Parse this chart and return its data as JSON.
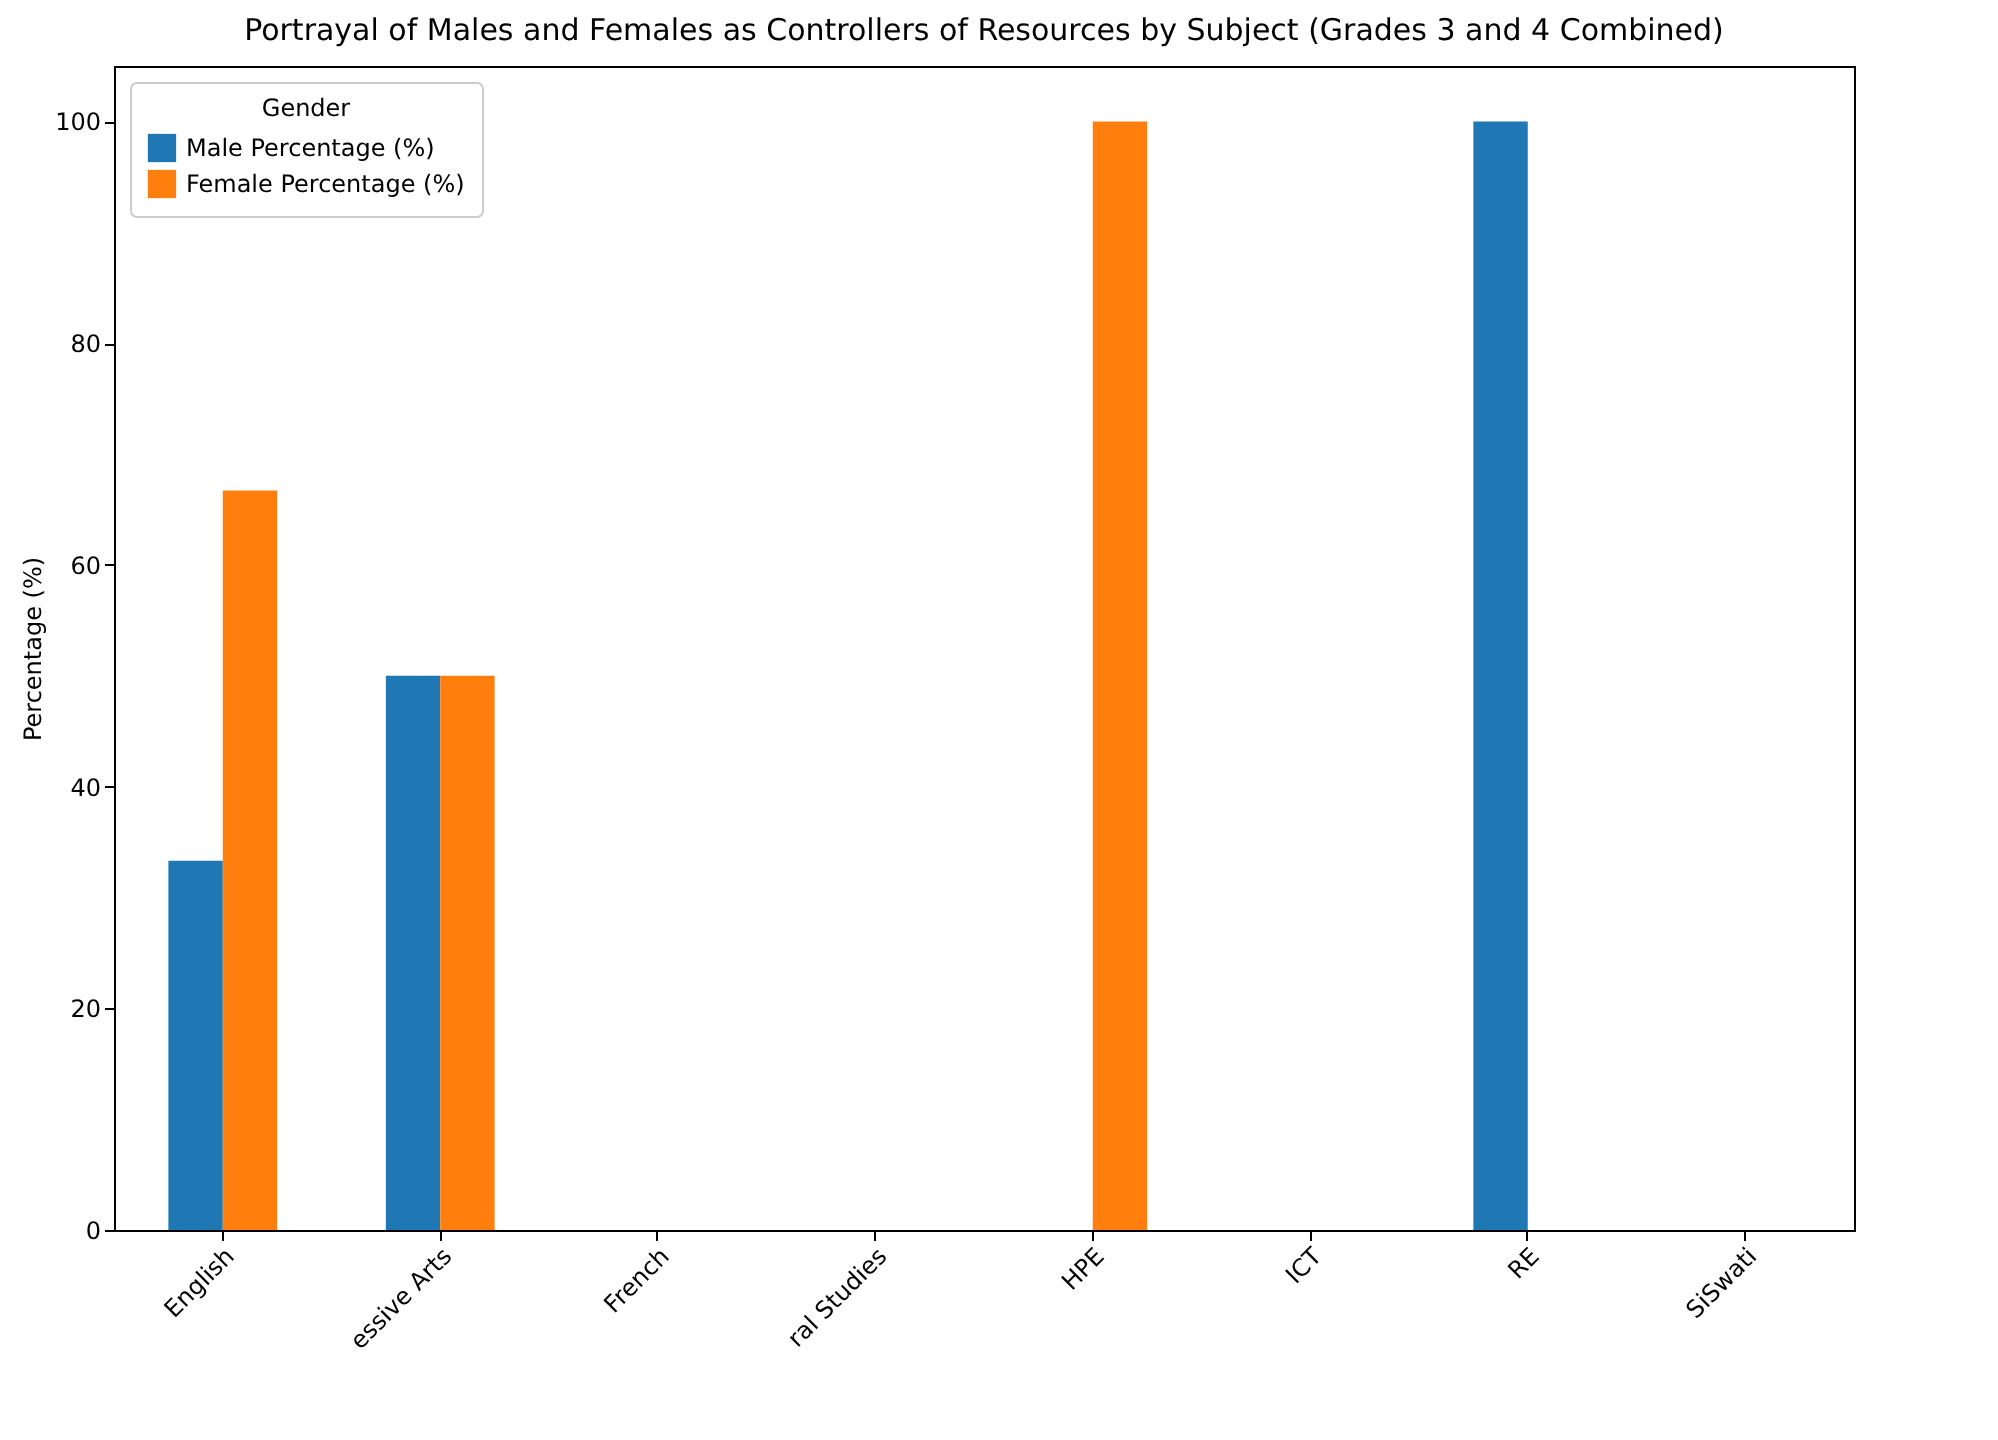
{
  "chart_data": {
    "type": "bar",
    "title": "Portrayal of Males and Females as Controllers of Resources by Subject (Grades 3 and 4 Combined)",
    "ylabel": "Percentage (%)",
    "legend_title": "Gender",
    "legend": "top left",
    "grid": false,
    "categories": [
      "English",
      "essive Arts",
      "French",
      "ral Studies",
      "HPE",
      "ICT",
      "RE",
      "SiSwati"
    ],
    "ylim": [
      0,
      105
    ],
    "yticks": [
      0,
      20,
      40,
      60,
      80,
      100
    ],
    "series": [
      {
        "name": "Male Percentage (%)",
        "color": "#1f77b4",
        "values": [
          33.3,
          50,
          0,
          0,
          0,
          0,
          100,
          0
        ]
      },
      {
        "name": "Female Percentage (%)",
        "color": "#ff7f0e",
        "values": [
          66.7,
          50,
          0,
          0,
          100,
          0,
          0,
          0
        ]
      }
    ]
  }
}
